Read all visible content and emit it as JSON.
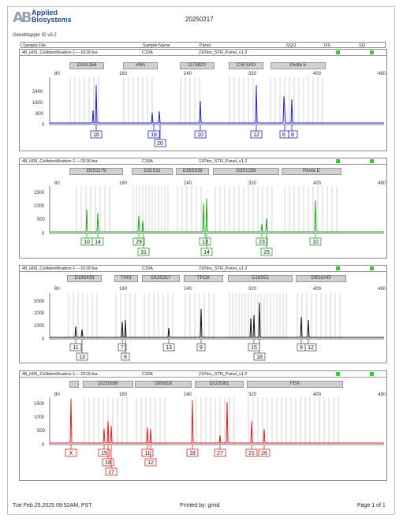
{
  "header": {
    "logo_line1": "Applied",
    "logo_line2": "Biosystems",
    "logo_mark": "AB",
    "app_name": "GeneMapper ID v3.2",
    "date_code": "20250217"
  },
  "columns": {
    "sample_file": "Sample File",
    "sample_name": "Sample Name",
    "panel": "Panel",
    "sqo": "SQO",
    "os": "OS",
    "sq": "SQ"
  },
  "panels": [
    {
      "sample_file": "48_H06_Cellidentification-1----0218.fsa",
      "sample_name": "C33A",
      "panel": "21Plex_STR_Panel_v1.2",
      "color": "#1f1fd6",
      "markers": [
        "D3S1358",
        "vWA",
        "D7S820",
        "CSF1PO",
        "Penta E"
      ],
      "x_ticks": [
        "80",
        "160",
        "240",
        "320",
        "400",
        "480"
      ],
      "y_ticks": [
        "2400",
        "1600",
        "800",
        "0"
      ],
      "alleles": [
        "16",
        "18",
        "20",
        "10",
        "12",
        "6",
        "8"
      ]
    },
    {
      "sample_file": "48_H06_Cellidentification-1----0218.fsa",
      "sample_name": "C33A",
      "panel": "21Plex_STR_Panel_v1.2",
      "color": "#1fa51f",
      "markers": [
        "D5S1179",
        "D21S11",
        "D16S539",
        "D2S1338",
        "Penta D"
      ],
      "x_ticks": [
        "80",
        "160",
        "240",
        "320",
        "400",
        "480"
      ],
      "y_ticks": [
        "1500",
        "1000",
        "500",
        "0"
      ],
      "alleles": [
        "10",
        "14",
        "29",
        "31",
        "13",
        "14",
        "23",
        "25",
        "10"
      ]
    },
    {
      "sample_file": "48_H06_Cellidentification-1----0218.fsa",
      "sample_name": "C33A",
      "panel": "21Plex_STR_Panel_v1.2",
      "color": "#111111",
      "markers": [
        "D19S433",
        "TH01",
        "D13S317",
        "TPOX",
        "D18S51",
        "D6S1043"
      ],
      "x_ticks": [
        "80",
        "160",
        "240",
        "320",
        "400",
        "480"
      ],
      "y_ticks": [
        "3000",
        "2000",
        "1000",
        "0"
      ],
      "alleles": [
        "11",
        "13",
        "7",
        "8",
        "13",
        "9",
        "15",
        "18",
        "9",
        "12"
      ]
    },
    {
      "sample_file": "48_H06_Cellidentification-1----0218.fsa",
      "sample_name": "C33A",
      "panel": "21Plex_STR_Panel_v1.2",
      "color": "#e02020",
      "markers": [
        "",
        "D1S1656",
        "D8S818",
        "D12S391",
        "FGA"
      ],
      "x_ticks": [
        "80",
        "160",
        "240",
        "320",
        "400",
        "480"
      ],
      "y_ticks": [
        "1500",
        "1000",
        "500",
        "0"
      ],
      "alleles": [
        "X",
        "15",
        "16",
        "17",
        "11",
        "12",
        "18",
        "27",
        "21",
        "26"
      ]
    }
  ],
  "footer": {
    "timestamp": "Tue Feb 25,2025 09:52AM, PST",
    "printed_by": "Printed by: gmid",
    "page": "Page 1 of 1"
  }
}
